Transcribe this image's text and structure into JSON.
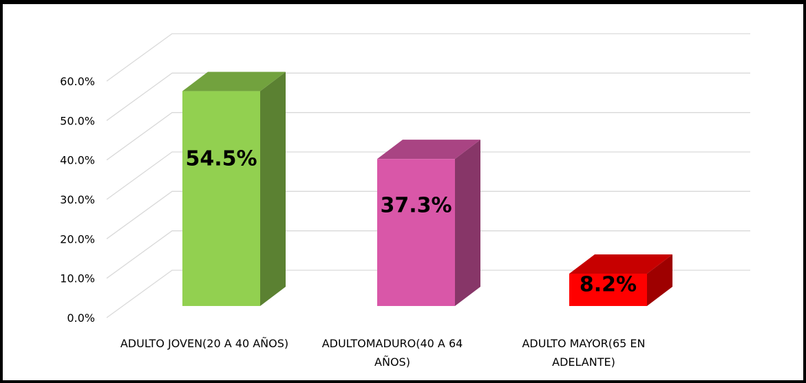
{
  "chart_data": {
    "type": "bar3d",
    "categories": [
      "ADULTO JOVEN(20 A 40 AÑOS)",
      "ADULTOMADURO(40 A 64 AÑOS)",
      "ADULTO MAYOR(65 EN ADELANTE)"
    ],
    "values": [
      54.5,
      37.3,
      8.2
    ],
    "value_labels": [
      "54.5%",
      "37.3%",
      "8.2%"
    ],
    "colors": [
      "#92d050",
      "#d957a8",
      "#ff0000"
    ],
    "ylim": [
      0,
      60
    ],
    "yticks": [
      {
        "value": 0,
        "label": "0.0%"
      },
      {
        "value": 10,
        "label": "10.0%"
      },
      {
        "value": 20,
        "label": "20.0%"
      },
      {
        "value": 30,
        "label": "30.0%"
      },
      {
        "value": 40,
        "label": "40.0%"
      },
      {
        "value": 50,
        "label": "50.0%"
      },
      {
        "value": 60,
        "label": "60.0%"
      }
    ],
    "grid": true
  }
}
